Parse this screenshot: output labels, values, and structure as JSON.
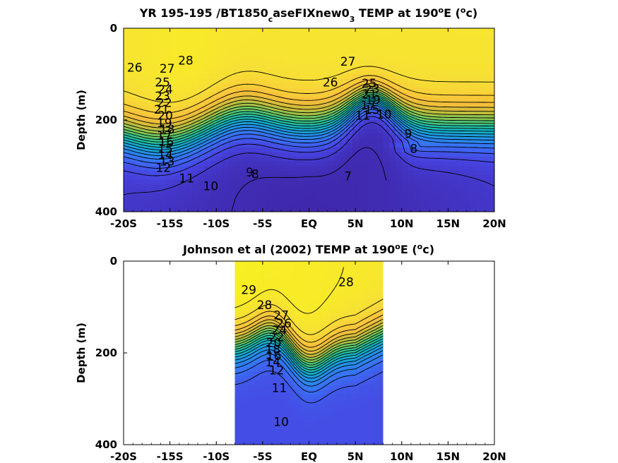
{
  "figure": {
    "colormap": [
      "#3e26a8",
      "#4743e0",
      "#3a6ff5",
      "#2290e8",
      "#12b0cd",
      "#26c297",
      "#72c85a",
      "#c4bc3a",
      "#f9be3a",
      "#f7e035",
      "#f9fb15"
    ]
  },
  "chart_data": [
    {
      "type": "heatmap",
      "title_parts": {
        "pre": "YR 195-195 /BT1850",
        "sub1": "c",
        "mid": "aseFIXnew0",
        "sub2": "3",
        "post1": " TEMP at 190",
        "sup1": "o",
        "post2": "E (",
        "sup2": "o",
        "post3": "c)"
      },
      "ylabel": "Depth (m)",
      "xlabel": "",
      "x_ticks": [
        "-20S",
        "-15S",
        "-10S",
        "-5S",
        "EQ",
        "5N",
        "10N",
        "15N",
        "20N"
      ],
      "x_tick_values": [
        -20,
        -15,
        -10,
        -5,
        0,
        5,
        10,
        15,
        20
      ],
      "y_ticks": [
        "0",
        "200",
        "400"
      ],
      "y_tick_values": [
        0,
        200,
        400
      ],
      "xlim": [
        -20,
        20
      ],
      "ylim": [
        0,
        400
      ],
      "y_reversed": true,
      "data_xrange": [
        -20,
        20
      ],
      "units": "degC",
      "contour_labels": [
        {
          "text": "28",
          "x": -13.3,
          "y": 70
        },
        {
          "text": "26",
          "x": -18.8,
          "y": 85
        },
        {
          "text": "27",
          "x": -15.3,
          "y": 88
        },
        {
          "text": "27",
          "x": 4.2,
          "y": 72
        },
        {
          "text": "26",
          "x": 2.3,
          "y": 118
        },
        {
          "text": "25",
          "x": -15.8,
          "y": 118
        },
        {
          "text": "24",
          "x": -15.5,
          "y": 133
        },
        {
          "text": "23",
          "x": -15.8,
          "y": 148
        },
        {
          "text": "22",
          "x": -15.6,
          "y": 162
        },
        {
          "text": "21",
          "x": -15.9,
          "y": 177
        },
        {
          "text": "20",
          "x": -15.5,
          "y": 190
        },
        {
          "text": "19",
          "x": -15.6,
          "y": 206
        },
        {
          "text": "18",
          "x": -15.3,
          "y": 220
        },
        {
          "text": "17",
          "x": -15.6,
          "y": 234
        },
        {
          "text": "16",
          "x": -15.4,
          "y": 248
        },
        {
          "text": "15",
          "x": -15.5,
          "y": 262
        },
        {
          "text": "14",
          "x": -15.5,
          "y": 276
        },
        {
          "text": "13",
          "x": -15.3,
          "y": 290
        },
        {
          "text": "12",
          "x": -15.7,
          "y": 304
        },
        {
          "text": "11",
          "x": -13.2,
          "y": 327
        },
        {
          "text": "10",
          "x": -10.6,
          "y": 344
        },
        {
          "text": "9",
          "x": -6.4,
          "y": 314
        },
        {
          "text": "8",
          "x": -5.8,
          "y": 318
        },
        {
          "text": "7",
          "x": 4.2,
          "y": 322
        },
        {
          "text": "11",
          "x": 5.8,
          "y": 190
        },
        {
          "text": "10",
          "x": 8.1,
          "y": 188
        },
        {
          "text": "9",
          "x": 10.7,
          "y": 230
        },
        {
          "text": "8",
          "x": 11.3,
          "y": 262
        },
        {
          "text": "25",
          "x": 6.5,
          "y": 120
        },
        {
          "text": "23",
          "x": 6.8,
          "y": 132
        },
        {
          "text": "21",
          "x": 6.5,
          "y": 144
        },
        {
          "text": "19",
          "x": 6.9,
          "y": 156
        },
        {
          "text": "17",
          "x": 6.4,
          "y": 168
        },
        {
          "text": "15",
          "x": 6.8,
          "y": 178
        }
      ]
    },
    {
      "type": "heatmap",
      "title_parts": {
        "pre": "Johnson et al (2002) TEMP at 190",
        "sup1": "o",
        "post2": "E (",
        "sup2": "o",
        "post3": "c)"
      },
      "ylabel": "Depth (m)",
      "xlabel": "",
      "x_ticks": [
        "-20S",
        "-15S",
        "-10S",
        "-5S",
        "EQ",
        "5N",
        "10N",
        "15N",
        "20N"
      ],
      "x_tick_values": [
        -20,
        -15,
        -10,
        -5,
        0,
        5,
        10,
        15,
        20
      ],
      "y_ticks": [
        "0",
        "200",
        "400"
      ],
      "y_tick_values": [
        0,
        200,
        400
      ],
      "xlim": [
        -20,
        20
      ],
      "ylim": [
        0,
        400
      ],
      "y_reversed": true,
      "data_xrange": [
        -8,
        8
      ],
      "units": "degC",
      "contour_labels": [
        {
          "text": "29",
          "x": -6.5,
          "y": 62
        },
        {
          "text": "28",
          "x": -4.8,
          "y": 95
        },
        {
          "text": "28",
          "x": 4.0,
          "y": 45
        },
        {
          "text": "27",
          "x": -3.0,
          "y": 118
        },
        {
          "text": "26",
          "x": -2.7,
          "y": 135
        },
        {
          "text": "24",
          "x": -3.2,
          "y": 150
        },
        {
          "text": "22",
          "x": -3.5,
          "y": 165
        },
        {
          "text": "20",
          "x": -3.8,
          "y": 178
        },
        {
          "text": "18",
          "x": -3.9,
          "y": 192
        },
        {
          "text": "16",
          "x": -3.8,
          "y": 206
        },
        {
          "text": "14",
          "x": -3.9,
          "y": 220
        },
        {
          "text": "12",
          "x": -3.5,
          "y": 238
        },
        {
          "text": "11",
          "x": -3.2,
          "y": 276
        },
        {
          "text": "10",
          "x": -3.0,
          "y": 350
        }
      ]
    }
  ]
}
